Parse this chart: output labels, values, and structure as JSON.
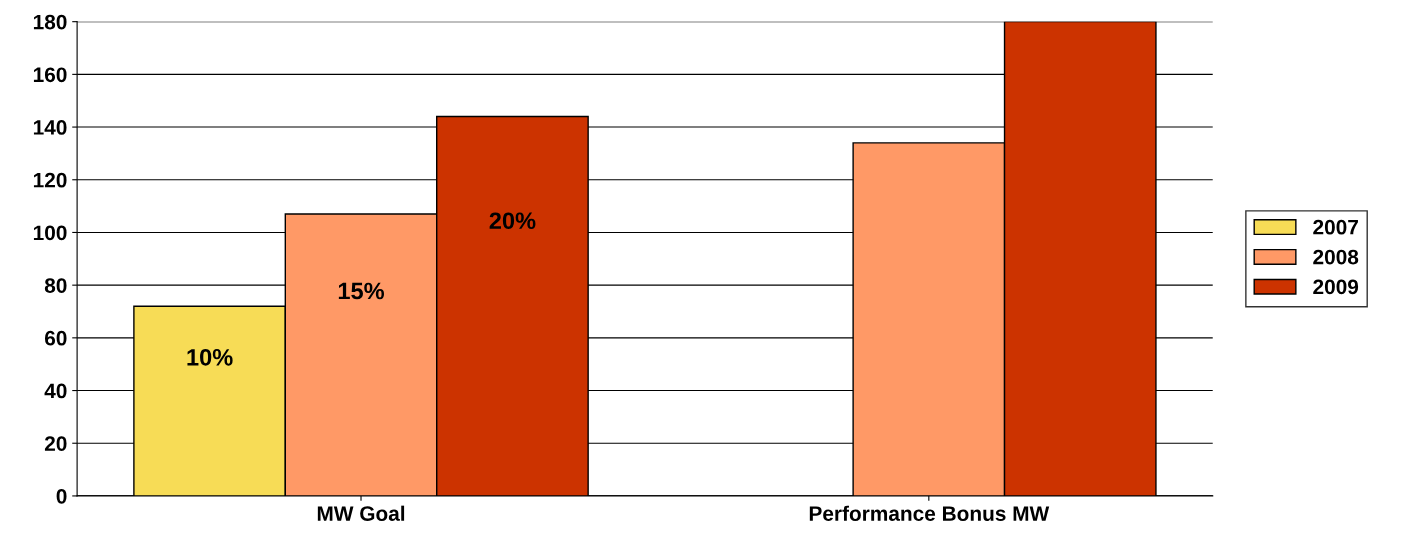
{
  "chart_data": {
    "type": "bar",
    "categories": [
      "MW Goal",
      "Performance Bonus MW"
    ],
    "series": [
      {
        "name": "2007",
        "color": "#f7dc56",
        "values": [
          72,
          null
        ]
      },
      {
        "name": "2008",
        "color": "#ff9966",
        "values": [
          107,
          134
        ]
      },
      {
        "name": "2009",
        "color": "#cc3300",
        "values": [
          144,
          180
        ]
      }
    ],
    "annotations": [
      "10%",
      "15%",
      "20%"
    ],
    "ylim": [
      0,
      180
    ],
    "yticks": [
      0,
      20,
      40,
      60,
      80,
      100,
      120,
      140,
      160,
      180
    ],
    "grid": "y",
    "legend": "right"
  }
}
